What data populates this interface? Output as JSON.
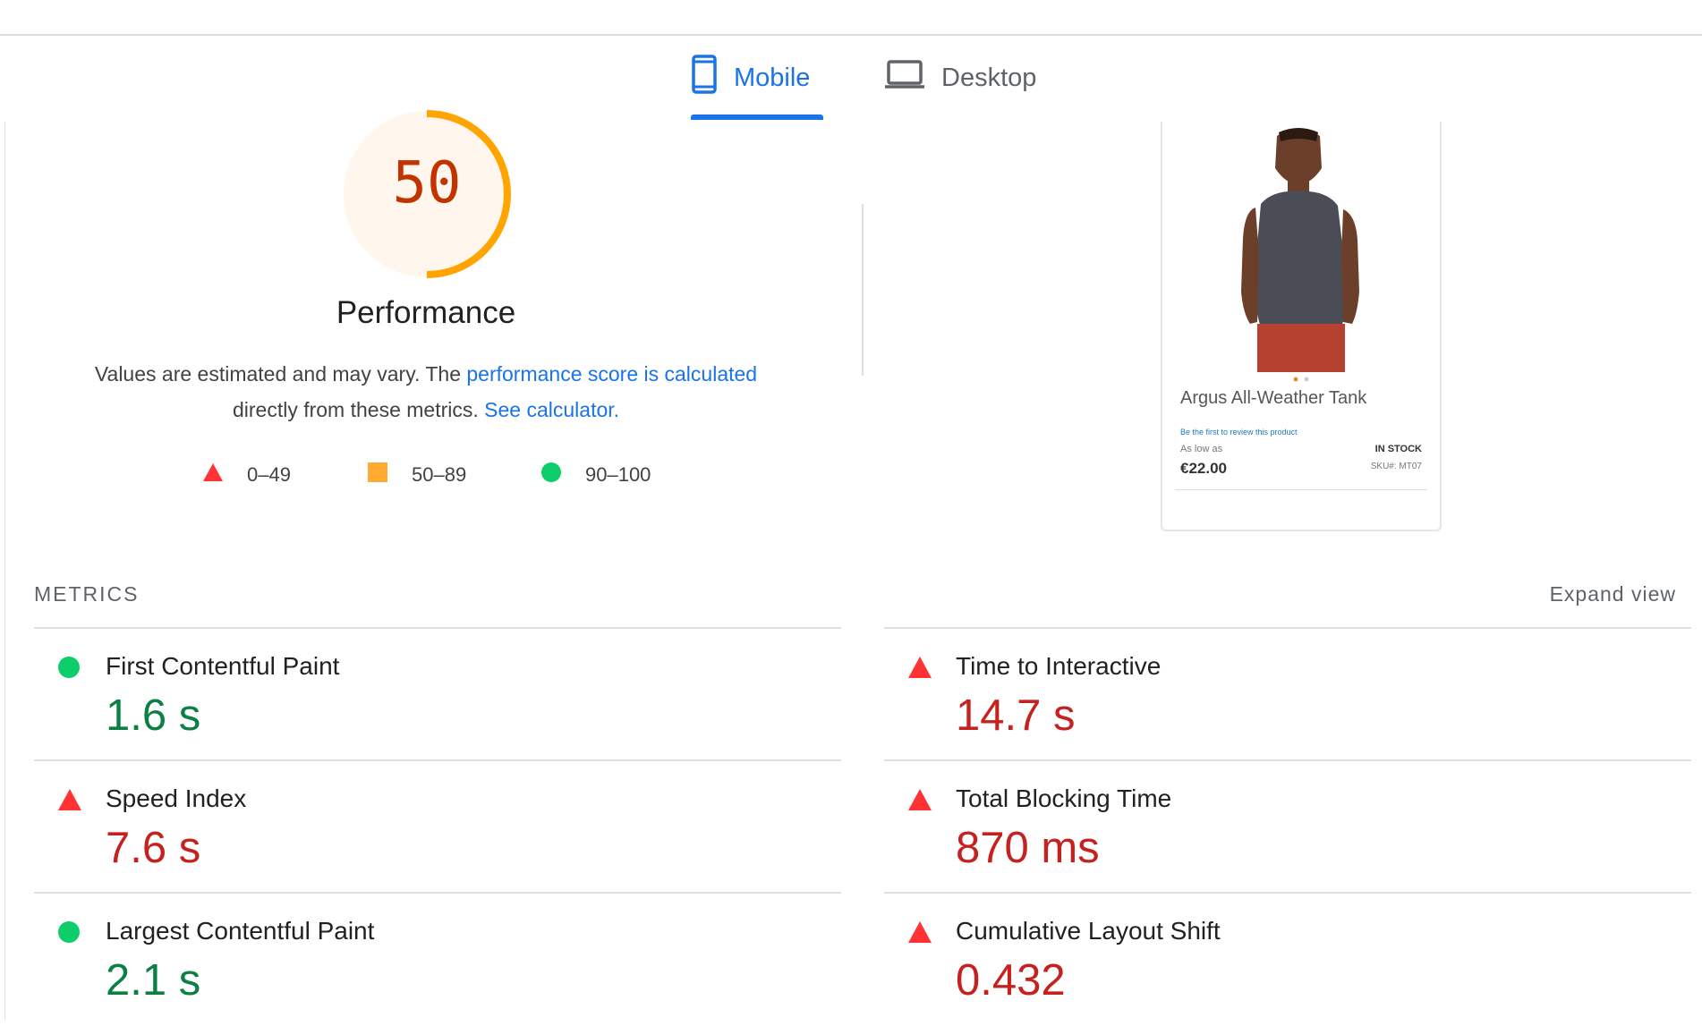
{
  "tabs": [
    {
      "label": "Mobile",
      "icon": "smartphone-icon",
      "active": true
    },
    {
      "label": "Desktop",
      "icon": "laptop-icon",
      "active": false
    }
  ],
  "performance": {
    "score": "50",
    "score_value": 50,
    "title": "Performance",
    "description": {
      "text1": "Values are estimated and may vary. The ",
      "link1": "performance score is calculated",
      "text2": " directly from these metrics. ",
      "link2": "See calculator."
    },
    "legend": [
      {
        "range": "0–49",
        "icon": "triangle-icon",
        "color": "#ff3333"
      },
      {
        "range": "50–89",
        "icon": "square-icon",
        "color": "#ffaa33"
      },
      {
        "range": "90–100",
        "icon": "circle-icon",
        "color": "#0cce6b"
      }
    ],
    "colors": {
      "average": "#ffa400",
      "score_text": "#c33300",
      "gauge_bg": "#fff7ee"
    }
  },
  "screenshot": {
    "product_name": "Argus All-Weather Tank",
    "review_link": "Be the first to review this product",
    "as_low_as": "As low as",
    "stock": "IN STOCK",
    "price": "€22.00",
    "sku": "SKU#:  MT07"
  },
  "metrics": {
    "heading": "METRICS",
    "expand_label": "Expand view",
    "items": [
      {
        "name": "First Contentful Paint",
        "value": "1.6 s",
        "status": "pass"
      },
      {
        "name": "Time to Interactive",
        "value": "14.7 s",
        "status": "fail"
      },
      {
        "name": "Speed Index",
        "value": "7.6 s",
        "status": "fail"
      },
      {
        "name": "Total Blocking Time",
        "value": "870 ms",
        "status": "fail"
      },
      {
        "name": "Largest Contentful Paint",
        "value": "2.1 s",
        "status": "pass"
      },
      {
        "name": "Cumulative Layout Shift",
        "value": "0.432",
        "status": "fail"
      }
    ]
  }
}
